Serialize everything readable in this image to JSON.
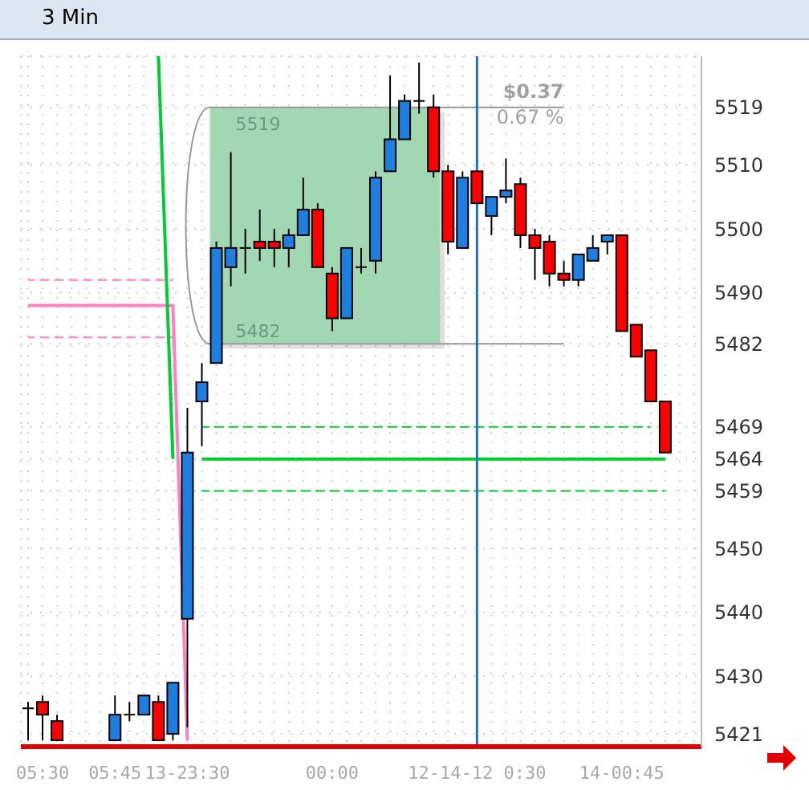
{
  "chart_data": {
    "type": "candlestick",
    "title": "3 Min",
    "categories": [
      null,
      "05:30",
      null,
      null,
      null,
      null,
      "05:45",
      null,
      null,
      null,
      null,
      "13-23:30",
      null,
      null,
      null,
      null,
      null,
      null,
      null,
      null,
      null,
      "00:00",
      null,
      null,
      null,
      null,
      null,
      null,
      null,
      null,
      null,
      "12-14-12 0:30",
      null,
      null,
      null,
      null,
      null,
      null,
      null,
      null,
      null,
      "14-00:45",
      null,
      null,
      null,
      null,
      null
    ],
    "ohlc": [
      [
        5425,
        5426,
        5420,
        5425
      ],
      [
        5426,
        5427,
        5420,
        5424
      ],
      [
        5423,
        5424,
        5420,
        5420
      ],
      null,
      null,
      null,
      [
        5420,
        5427,
        5420,
        5424
      ],
      [
        5424,
        5426,
        5423,
        5424
      ],
      [
        5424,
        5427,
        5424,
        5427
      ],
      [
        5426,
        5427,
        5420,
        5420
      ],
      [
        5421,
        5429,
        5420,
        5429
      ],
      [
        5439,
        5472,
        5422,
        5465
      ],
      [
        5473,
        5479,
        5466,
        5476
      ],
      [
        5479,
        5498,
        5479,
        5497
      ],
      [
        5494,
        5512,
        5491,
        5497
      ],
      [
        5497,
        5500,
        5493,
        5497
      ],
      [
        5498,
        5503,
        5495,
        5497
      ],
      [
        5498,
        5500,
        5494,
        5497
      ],
      [
        5497,
        5500,
        5494,
        5499
      ],
      [
        5499,
        5508,
        5499,
        5503
      ],
      [
        5503,
        5504,
        5494,
        5494
      ],
      [
        5493,
        5494,
        5484,
        5486
      ],
      [
        5486,
        5497,
        5486,
        5497
      ],
      [
        5494,
        5497,
        5493,
        5494
      ],
      [
        5495,
        5509,
        5493,
        5508
      ],
      [
        5509,
        5524,
        5509,
        5514
      ],
      [
        5514,
        5521,
        5514,
        5520
      ],
      [
        5520,
        5526,
        5518,
        5520
      ],
      [
        5519,
        5521,
        5508,
        5509
      ],
      [
        5509,
        5510,
        5496,
        5498
      ],
      [
        5497,
        5509,
        5497,
        5508
      ],
      [
        5509,
        5509,
        5504,
        5504
      ],
      [
        5502,
        5505,
        5499,
        5505
      ],
      [
        5505,
        5511,
        5504,
        5506
      ],
      [
        5507,
        5508,
        5497,
        5499
      ],
      [
        5499,
        5500,
        5492,
        5497
      ],
      [
        5498,
        5499,
        5491,
        5493
      ],
      [
        5493,
        5495,
        5491,
        5492
      ],
      [
        5492,
        5496,
        5491,
        5496
      ],
      [
        5495,
        5499,
        5495,
        5497
      ],
      [
        5498,
        5499,
        5496,
        5499
      ],
      [
        5499,
        5499,
        5484,
        5484
      ],
      [
        5485,
        5485,
        5480,
        5480
      ],
      [
        5481,
        5481,
        5473,
        5473
      ],
      [
        5473,
        5473,
        5465,
        5465
      ],
      null,
      null
    ],
    "colors": [
      "#000000",
      "#ff0000",
      "#ff0000",
      null,
      null,
      null,
      "#1e7fe0",
      "#000000",
      "#1e7fe0",
      "#ff0000",
      "#1e7fe0",
      "#1e7fe0",
      "#1e7fe0",
      "#1e7fe0",
      "#1e7fe0",
      "#000000",
      "#ff0000",
      "#ff0000",
      "#1e7fe0",
      "#1e7fe0",
      "#ff0000",
      "#ff0000",
      "#1e7fe0",
      "#000000",
      "#1e7fe0",
      "#1e7fe0",
      "#1e7fe0",
      "#000000",
      "#ff0000",
      "#ff0000",
      "#1e7fe0",
      "#ff0000",
      "#1e7fe0",
      "#1e7fe0",
      "#ff0000",
      "#ff0000",
      "#ff0000",
      "#ff0000",
      "#1e7fe0",
      "#1e7fe0",
      "#1e7fe0",
      "#ff0000",
      "#ff0000",
      "#ff0000",
      "#ff0000",
      null,
      null
    ],
    "series": [
      {
        "type": "line",
        "color": "#ff80c0",
        "line_style": "solid",
        "values": [
          5488,
          5488,
          5488,
          5488,
          5488,
          5488,
          5488,
          5488,
          5488,
          5488,
          5488,
          5420,
          null,
          null,
          null,
          null,
          null,
          null,
          null,
          null,
          null,
          null,
          null,
          null,
          null,
          null,
          null,
          null,
          null,
          null,
          null,
          null,
          null,
          null,
          null,
          null,
          null,
          null,
          null,
          null,
          null,
          null,
          null,
          null,
          null,
          null,
          null
        ]
      },
      {
        "type": "line",
        "color": "#ff80c0",
        "line_style": "dashed",
        "values": [
          5492,
          5492,
          5492,
          5492,
          5492,
          5492,
          5492,
          5492,
          5492,
          5492,
          5492,
          null,
          null,
          null,
          null,
          null,
          null,
          null,
          null,
          null,
          null,
          null,
          null,
          null,
          null,
          null,
          null,
          null,
          null,
          null,
          null,
          null,
          null,
          null,
          null,
          null,
          null,
          null,
          null,
          null,
          null,
          null,
          null,
          null,
          null,
          null,
          null
        ]
      },
      {
        "type": "line",
        "color": "#ff80c0",
        "line_style": "dashed",
        "values": [
          5483,
          5483,
          5483,
          5483,
          5483,
          5483,
          5483,
          5483,
          5483,
          5483,
          5483,
          null,
          null,
          null,
          null,
          null,
          null,
          null,
          null,
          null,
          null,
          null,
          null,
          null,
          null,
          null,
          null,
          null,
          null,
          null,
          null,
          null,
          null,
          null,
          null,
          null,
          null,
          null,
          null,
          null,
          null,
          null,
          null,
          null,
          null,
          null,
          null
        ]
      },
      {
        "type": "line",
        "color": "#00cc33",
        "line_style": "solid",
        "values": [
          null,
          null,
          null,
          null,
          null,
          null,
          null,
          null,
          null,
          5527,
          5464,
          null,
          5464,
          5464,
          5464,
          5464,
          5464,
          5464,
          5464,
          5464,
          5464,
          5464,
          5464,
          5464,
          5464,
          5464,
          5464,
          5464,
          5464,
          5464,
          5464,
          5464,
          5464,
          5464,
          5464,
          5464,
          5464,
          5464,
          5464,
          5464,
          5464,
          5464,
          5464,
          5464,
          5464,
          null,
          null
        ]
      },
      {
        "type": "line",
        "color": "#00cc33",
        "line_style": "dashed",
        "values": [
          null,
          null,
          null,
          null,
          null,
          null,
          null,
          null,
          null,
          null,
          null,
          null,
          5469,
          5469,
          5469,
          5469,
          5469,
          5469,
          5469,
          5469,
          5469,
          5469,
          5469,
          5469,
          5469,
          5469,
          5469,
          5469,
          5469,
          5469,
          5469,
          5469,
          5469,
          5469,
          5469,
          5469,
          5469,
          5469,
          5469,
          5469,
          5469,
          5469,
          5469,
          5469,
          null,
          null,
          null
        ]
      },
      {
        "type": "line",
        "color": "#00cc33",
        "line_style": "dashed",
        "values": [
          null,
          null,
          null,
          null,
          null,
          null,
          null,
          null,
          null,
          null,
          null,
          null,
          5459,
          5459,
          5459,
          5459,
          5459,
          5459,
          5459,
          5459,
          5459,
          5459,
          5459,
          5459,
          5459,
          5459,
          5459,
          5459,
          5459,
          5459,
          5459,
          5459,
          5459,
          5459,
          5459,
          5459,
          5459,
          5459,
          5459,
          5459,
          5459,
          5459,
          5459,
          5459,
          5459,
          null,
          null
        ]
      }
    ],
    "ylim": [
      5419,
      5527
    ],
    "yticks": [
      5421,
      5430,
      5440,
      5450,
      5459,
      5464,
      5469,
      5482,
      5490,
      5500,
      5510,
      5519
    ],
    "ref_lines": [
      {
        "axis": "x",
        "value": "12-14-12 0:30",
        "color": "#1e6fd0"
      }
    ],
    "bands": [
      {
        "axis": "y",
        "from": 5482,
        "to": 5519,
        "color": "#9ed6b1"
      }
    ],
    "annotations": [
      "5519",
      "5482",
      "$0.37",
      "0.67 %"
    ],
    "grid": true,
    "legend": false
  }
}
